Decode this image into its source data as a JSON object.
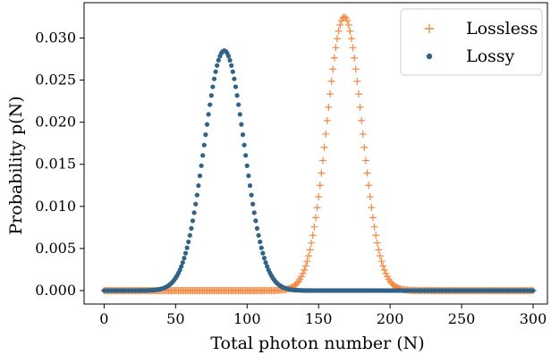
{
  "chart_data": {
    "type": "scatter",
    "title": "",
    "xlabel": "Total photon number (N)",
    "ylabel": "Probability p(N)",
    "xlim": [
      -14,
      310
    ],
    "ylim": [
      -0.0016,
      0.0342
    ],
    "xticks": [
      0,
      50,
      100,
      150,
      200,
      250,
      300
    ],
    "yticks": [
      0.0,
      0.005,
      0.01,
      0.015,
      0.02,
      0.025,
      0.03
    ],
    "grid": false,
    "legend_position": "top-right",
    "x_range": [
      0,
      300
    ],
    "series": [
      {
        "name": "Lossless",
        "marker": "plus",
        "color": "#f4873f",
        "distribution": "gaussian",
        "peak_x": 168,
        "peak_y": 0.0325,
        "std": 12.3
      },
      {
        "name": "Lossy",
        "marker": "dot",
        "color": "#2f6388",
        "distribution": "gaussian",
        "peak_x": 84,
        "peak_y": 0.0285,
        "std": 14
      }
    ]
  }
}
